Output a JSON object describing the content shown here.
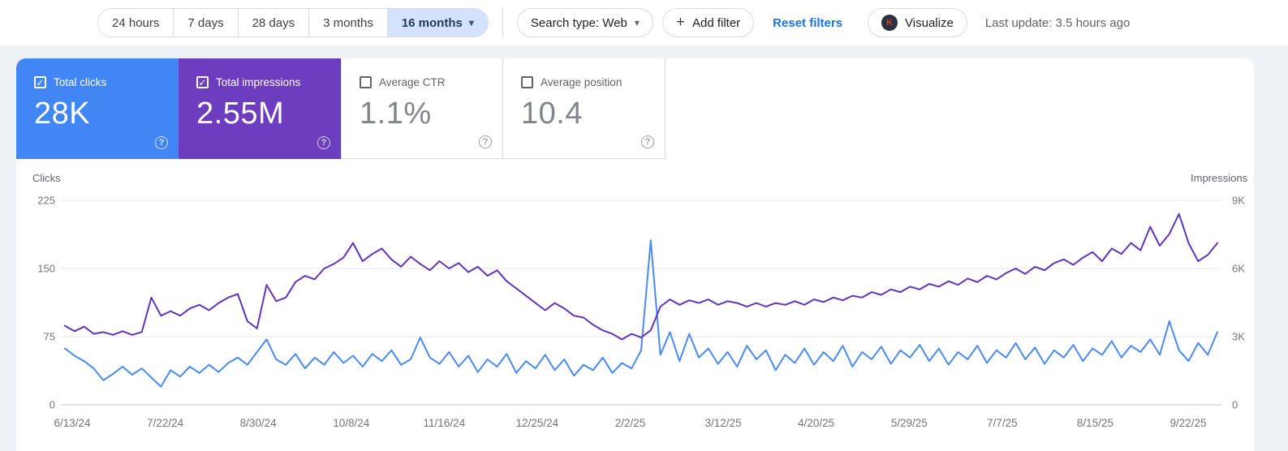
{
  "toolbar": {
    "range_tabs": [
      {
        "label": "24 hours",
        "selected": false
      },
      {
        "label": "7 days",
        "selected": false
      },
      {
        "label": "28 days",
        "selected": false
      },
      {
        "label": "3 months",
        "selected": false
      },
      {
        "label": "16 months",
        "selected": true
      }
    ],
    "search_type_label": "Search type: Web",
    "add_filter_label": "Add filter",
    "reset_filters_label": "Reset filters",
    "visualize_label": "Visualize",
    "visualize_icon_letter": "K",
    "last_update": "Last update: 3.5 hours ago"
  },
  "metrics": {
    "cards": [
      {
        "label": "Total clicks",
        "value": "28K",
        "checked": true,
        "selected": true,
        "bg": "#4285f4"
      },
      {
        "label": "Total impressions",
        "value": "2.55M",
        "checked": true,
        "selected": true,
        "bg": "#6c3dbe"
      },
      {
        "label": "Average CTR",
        "value": "1.1%",
        "checked": false,
        "selected": false,
        "bg": "#ffffff"
      },
      {
        "label": "Average position",
        "value": "10.4",
        "checked": false,
        "selected": false,
        "bg": "#ffffff"
      }
    ]
  },
  "colors": {
    "clicks_blue": "#4285f4",
    "impressions_purple": "#6c3dbe",
    "clicks_line": "#4a8af4",
    "impressions_line": "#6134be",
    "link_blue": "#1a73e8",
    "selected_tab_bg": "#d3e3fd",
    "gridline": "#e3e6ea",
    "axis_text": "#757575"
  },
  "chart_data": {
    "type": "line",
    "title": "",
    "legend": "none",
    "grid": "horizontal",
    "x_interval_days": 4,
    "x_tick_labels": [
      "6/13/24",
      "7/22/24",
      "8/30/24",
      "10/8/24",
      "11/16/24",
      "12/25/24",
      "2/2/25",
      "3/12/25",
      "4/20/25",
      "5/29/25",
      "7/7/25",
      "8/15/25",
      "9/22/25"
    ],
    "left_axis": {
      "title": "Clicks",
      "range": [
        0,
        225
      ],
      "ticks": [
        0,
        75,
        150,
        225
      ]
    },
    "right_axis": {
      "title": "Impressions",
      "range": [
        0,
        9000
      ],
      "ticks": [
        {
          "value": 0,
          "label": "0"
        },
        {
          "value": 3000,
          "label": "3K"
        },
        {
          "value": 6000,
          "label": "6K"
        },
        {
          "value": 9000,
          "label": "9K"
        }
      ]
    },
    "series": [
      {
        "key": "clicks",
        "name": "Total clicks",
        "axis": "left",
        "color": "#4a8af4",
        "values": [
          62,
          54,
          48,
          40,
          27,
          34,
          42,
          33,
          40,
          30,
          20,
          38,
          31,
          42,
          35,
          44,
          36,
          46,
          52,
          44,
          58,
          72,
          50,
          44,
          56,
          40,
          52,
          44,
          58,
          46,
          54,
          42,
          56,
          48,
          60,
          44,
          50,
          74,
          52,
          45,
          58,
          42,
          54,
          36,
          50,
          42,
          56,
          35,
          48,
          40,
          55,
          38,
          50,
          32,
          44,
          38,
          52,
          35,
          46,
          40,
          60,
          181,
          55,
          80,
          48,
          78,
          52,
          62,
          45,
          58,
          42,
          65,
          50,
          60,
          38,
          55,
          46,
          62,
          44,
          58,
          48,
          65,
          42,
          58,
          50,
          64,
          45,
          60,
          52,
          66,
          48,
          62,
          44,
          58,
          50,
          65,
          46,
          60,
          52,
          68,
          50,
          63,
          45,
          60,
          52,
          66,
          48,
          62,
          55,
          70,
          52,
          65,
          58,
          72,
          55,
          92,
          60,
          48,
          68,
          55,
          80
        ]
      },
      {
        "key": "impressions",
        "name": "Total impressions",
        "axis": "right",
        "color": "#6134be",
        "values": [
          3480,
          3240,
          3440,
          3120,
          3200,
          3080,
          3240,
          3080,
          3200,
          4720,
          3920,
          4120,
          3920,
          4240,
          4400,
          4160,
          4480,
          4720,
          4880,
          3680,
          3360,
          5280,
          4560,
          4720,
          5400,
          5680,
          5520,
          6000,
          6200,
          6480,
          7120,
          6320,
          6640,
          6880,
          6400,
          6080,
          6520,
          6200,
          5920,
          6320,
          6000,
          6240,
          5840,
          6080,
          5680,
          5920,
          5440,
          5120,
          4800,
          4480,
          4160,
          4480,
          4240,
          3920,
          3840,
          3520,
          3280,
          3120,
          2880,
          3120,
          2960,
          3280,
          4320,
          4640,
          4400,
          4600,
          4480,
          4640,
          4400,
          4560,
          4480,
          4320,
          4480,
          4320,
          4480,
          4400,
          4560,
          4400,
          4640,
          4520,
          4720,
          4600,
          4800,
          4720,
          4960,
          4840,
          5080,
          4960,
          5200,
          5080,
          5320,
          5200,
          5440,
          5280,
          5560,
          5400,
          5680,
          5520,
          5800,
          6000,
          5760,
          6080,
          5920,
          6240,
          6400,
          6160,
          6480,
          6720,
          6320,
          6880,
          6640,
          7120,
          6800,
          7840,
          7000,
          7520,
          8400,
          7120,
          6320,
          6600,
          7120
        ]
      }
    ]
  }
}
